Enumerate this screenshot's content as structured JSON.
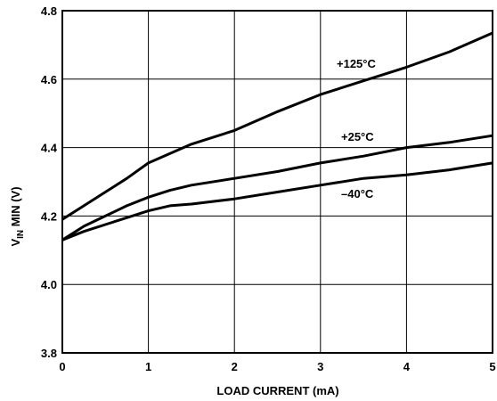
{
  "chart_data": {
    "type": "line",
    "title": "",
    "xlabel": "LOAD CURRENT (mA)",
    "ylabel": {
      "main": "V",
      "sub": "IN",
      "rest": " MIN (V)"
    },
    "xlim": [
      0,
      5
    ],
    "ylim": [
      3.8,
      4.8
    ],
    "xticks": [
      "0",
      "1",
      "2",
      "3",
      "4",
      "5"
    ],
    "yticks": [
      "3.8",
      "4.0",
      "4.2",
      "4.4",
      "4.6",
      "4.8"
    ],
    "grid": true,
    "legend": "none",
    "series": [
      {
        "name": "+125°C",
        "x": [
          0,
          0.25,
          0.5,
          0.75,
          1.0,
          1.5,
          2.0,
          2.5,
          3.0,
          3.5,
          4.0,
          4.5,
          5.0
        ],
        "y": [
          4.19,
          4.23,
          4.27,
          4.31,
          4.355,
          4.41,
          4.45,
          4.505,
          4.555,
          4.595,
          4.635,
          4.68,
          4.735
        ]
      },
      {
        "name": "+25°C",
        "x": [
          0,
          0.25,
          0.5,
          0.75,
          1.0,
          1.25,
          1.5,
          2.0,
          2.5,
          3.0,
          3.5,
          4.0,
          4.5,
          5.0
        ],
        "y": [
          4.13,
          4.17,
          4.2,
          4.23,
          4.255,
          4.275,
          4.29,
          4.31,
          4.33,
          4.355,
          4.375,
          4.4,
          4.415,
          4.435
        ]
      },
      {
        "name": "–40°C",
        "x": [
          0,
          0.25,
          0.5,
          0.75,
          1.0,
          1.25,
          1.5,
          2.0,
          2.5,
          3.0,
          3.5,
          4.0,
          4.5,
          5.0
        ],
        "y": [
          4.13,
          4.155,
          4.175,
          4.195,
          4.215,
          4.23,
          4.235,
          4.25,
          4.27,
          4.29,
          4.31,
          4.32,
          4.335,
          4.355
        ]
      }
    ]
  }
}
